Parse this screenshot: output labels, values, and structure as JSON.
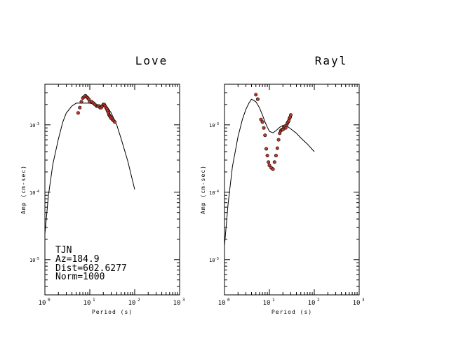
{
  "chart_data": [
    {
      "type": "scatter",
      "title": "Love",
      "xlabel": "Period (s)",
      "ylabel": "Amp (cm-sec)",
      "xscale": "log",
      "yscale": "log",
      "xlim": [
        1,
        1000
      ],
      "ylim": [
        3e-06,
        0.004
      ],
      "x_ticks": [
        {
          "base": "10",
          "exp": "0"
        },
        {
          "base": "10",
          "exp": "1"
        },
        {
          "base": "10",
          "exp": "2"
        },
        {
          "base": "10",
          "exp": "3"
        }
      ],
      "y_ticks": [
        {
          "value": 0.001,
          "base": "10",
          "exp": "-3"
        },
        {
          "value": 0.0001,
          "base": "10",
          "exp": "-4"
        },
        {
          "value": 1e-05,
          "base": "10",
          "exp": "-5"
        }
      ],
      "grid": false,
      "annotations": [
        "TJN",
        "Az=184.9",
        "Dist=602.6277",
        "Norm=1000"
      ],
      "series": [
        {
          "kind": "line",
          "x": [
            1.0,
            1.2,
            1.5,
            2.0,
            2.5,
            3.0,
            4.0,
            5.0,
            6.0,
            7.0,
            8.0,
            10.0,
            13.0,
            16.0,
            20.0,
            25.0,
            30.0,
            40.0,
            50.0,
            70.0,
            100.0
          ],
          "y": [
            2.4e-05,
            9.1e-05,
            0.00026,
            0.00062,
            0.0011,
            0.0015,
            0.0019,
            0.0021,
            0.0021,
            0.0021,
            0.0021,
            0.0021,
            0.002,
            0.0019,
            0.0019,
            0.0018,
            0.0015,
            0.00099,
            0.00062,
            0.00029,
            0.00011
          ]
        },
        {
          "kind": "points",
          "color": "#c0392b",
          "x": [
            5.5,
            6.0,
            6.5,
            7.0,
            7.5,
            8.0,
            8.5,
            9.0,
            9.5,
            10.0,
            11.0,
            12.0,
            13.0,
            14.0,
            15.0,
            16.0,
            17.0,
            18.0,
            19.0,
            20.0,
            21.0,
            22.0,
            23.0,
            24.0,
            25.0,
            26.0,
            27.0,
            28.0,
            29.0,
            30.0,
            32.0,
            34.0,
            36.0
          ],
          "y": [
            0.0015,
            0.0018,
            0.0022,
            0.0025,
            0.0026,
            0.0027,
            0.0026,
            0.0025,
            0.0024,
            0.0022,
            0.0022,
            0.0021,
            0.002,
            0.0019,
            0.0019,
            0.0019,
            0.0018,
            0.0018,
            0.0019,
            0.002,
            0.002,
            0.0019,
            0.0018,
            0.0017,
            0.0016,
            0.0015,
            0.0014,
            0.00135,
            0.0013,
            0.00125,
            0.0012,
            0.00115,
            0.0011
          ]
        }
      ]
    },
    {
      "type": "scatter",
      "title": "Rayl",
      "xlabel": "Period (s)",
      "ylabel": "Amp (cm-sec)",
      "xscale": "log",
      "yscale": "log",
      "xlim": [
        1,
        1000
      ],
      "ylim": [
        3e-06,
        0.004
      ],
      "x_ticks": [
        {
          "base": "10",
          "exp": "0"
        },
        {
          "base": "10",
          "exp": "1"
        },
        {
          "base": "10",
          "exp": "2"
        },
        {
          "base": "10",
          "exp": "3"
        }
      ],
      "y_ticks": [
        {
          "value": 0.001,
          "base": "10",
          "exp": "-3"
        },
        {
          "value": 0.0001,
          "base": "10",
          "exp": "-4"
        },
        {
          "value": 1e-05,
          "base": "10",
          "exp": "-5"
        }
      ],
      "grid": false,
      "series": [
        {
          "kind": "line",
          "x": [
            1.0,
            1.2,
            1.5,
            2.0,
            2.5,
            3.0,
            3.5,
            4.0,
            5.0,
            6.0,
            7.0,
            8.0,
            9.0,
            10.0,
            12.0,
            14.0,
            17.0,
            20.0,
            25.0,
            30.0,
            40.0,
            50.0,
            70.0,
            100.0
          ],
          "y": [
            1.6e-05,
            6.7e-05,
            0.00024,
            0.00067,
            0.0012,
            0.0017,
            0.0021,
            0.0024,
            0.0022,
            0.0018,
            0.0014,
            0.0011,
            0.00092,
            0.0008,
            0.00076,
            0.00082,
            0.00092,
            0.00098,
            0.00095,
            0.00087,
            0.00075,
            0.00064,
            0.00052,
            0.0004
          ]
        },
        {
          "kind": "points",
          "color": "#c0392b",
          "x": [
            5.0,
            5.5,
            6.5,
            7.0,
            7.5,
            8.0,
            8.5,
            9.0,
            9.5,
            10.0,
            11.0,
            12.0,
            13.0,
            14.0,
            15.0,
            16.0,
            17.0,
            18.0,
            19.0,
            20.0,
            21.0,
            22.0,
            23.0,
            24.0,
            25.0,
            26.0,
            27.0,
            28.0,
            29.0,
            30.0
          ],
          "y": [
            0.0028,
            0.0024,
            0.0012,
            0.0011,
            0.0009,
            0.0007,
            0.00044,
            0.00035,
            0.00028,
            0.00025,
            0.00023,
            0.00022,
            0.00028,
            0.00035,
            0.00045,
            0.0006,
            0.00075,
            0.00082,
            0.00085,
            0.00085,
            0.00093,
            0.00095,
            0.0009,
            0.00098,
            0.00105,
            0.0011,
            0.00115,
            0.00125,
            0.0013,
            0.0014
          ]
        }
      ]
    }
  ]
}
